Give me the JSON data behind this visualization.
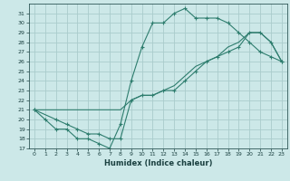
{
  "title": "",
  "xlabel": "Humidex (Indice chaleur)",
  "background_color": "#cce8e8",
  "grid_color": "#aacccc",
  "line_color": "#2e7d6e",
  "xlim": [
    -0.5,
    23.5
  ],
  "ylim": [
    17,
    32
  ],
  "yticks": [
    17,
    18,
    19,
    20,
    21,
    22,
    23,
    24,
    25,
    26,
    27,
    28,
    29,
    30,
    31
  ],
  "xticks": [
    0,
    1,
    2,
    3,
    4,
    5,
    6,
    7,
    8,
    9,
    10,
    11,
    12,
    13,
    14,
    15,
    16,
    17,
    18,
    19,
    20,
    21,
    22,
    23
  ],
  "line1_x": [
    0,
    1,
    2,
    3,
    4,
    5,
    6,
    7,
    8,
    9,
    10,
    11,
    12,
    13,
    14,
    15,
    16,
    17,
    18,
    19,
    20,
    21,
    22,
    23
  ],
  "line1_y": [
    21,
    20,
    19,
    19,
    18,
    18,
    17.5,
    17,
    19.5,
    24,
    27.5,
    30,
    30,
    31,
    31.5,
    30.5,
    30.5,
    30.5,
    30,
    29,
    28,
    27,
    26.5,
    26
  ],
  "line2_x": [
    0,
    2,
    3,
    4,
    5,
    6,
    7,
    8,
    9,
    10,
    11,
    12,
    13,
    14,
    15,
    16,
    17,
    18,
    19,
    20,
    21,
    22,
    23
  ],
  "line2_y": [
    21,
    20,
    19.5,
    19,
    18.5,
    18.5,
    18,
    18,
    22,
    22.5,
    22.5,
    23,
    23,
    24,
    25,
    26,
    26.5,
    27,
    27.5,
    29,
    29,
    28,
    26
  ],
  "line3_x": [
    0,
    1,
    2,
    3,
    4,
    5,
    6,
    7,
    8,
    9,
    10,
    11,
    12,
    13,
    14,
    15,
    16,
    17,
    18,
    19,
    20,
    21,
    22,
    23
  ],
  "line3_y": [
    21,
    21,
    21,
    21,
    21,
    21,
    21,
    21,
    21,
    22,
    22.5,
    22.5,
    23,
    23.5,
    24.5,
    25.5,
    26,
    26.5,
    27.5,
    28,
    29,
    29,
    28,
    26
  ]
}
